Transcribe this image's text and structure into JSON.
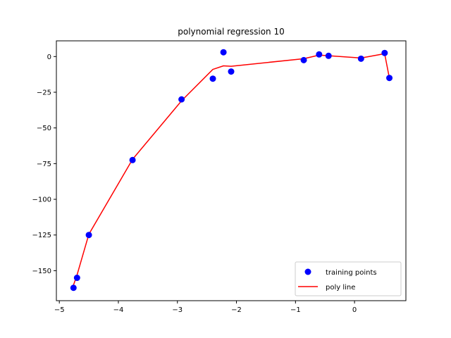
{
  "chart_data": {
    "type": "scatter",
    "title": "polynomial regression 10",
    "xlabel": "",
    "ylabel": "",
    "xlim": [
      -5.05,
      0.87
    ],
    "ylim": [
      -171,
      11
    ],
    "xticks": [
      -5,
      -4,
      -3,
      -2,
      -1,
      0
    ],
    "xtick_labels": [
      "−5",
      "−4",
      "−3",
      "−2",
      "−1",
      "0"
    ],
    "yticks": [
      0,
      -25,
      -50,
      -75,
      -100,
      -125,
      -150
    ],
    "ytick_labels": [
      "0",
      "−25",
      "−50",
      "−75",
      "−100",
      "−125",
      "−150"
    ],
    "grid": false,
    "legend_position": "lower-right",
    "series": [
      {
        "name": "training points",
        "kind": "scatter",
        "color": "#0000ff",
        "x": [
          -4.76,
          -4.7,
          -4.5,
          -3.76,
          -2.93,
          -2.4,
          -2.22,
          -2.09,
          -0.86,
          -0.6,
          -0.44,
          0.11,
          0.51,
          0.59
        ],
        "y": [
          -162,
          -155,
          -125,
          -72.5,
          -30,
          -15.5,
          3,
          -10.5,
          -2.5,
          1.5,
          0.5,
          -1.5,
          2.5,
          -15
        ]
      },
      {
        "name": "poly line",
        "kind": "line",
        "color": "#ff0000",
        "x": [
          -4.76,
          -4.7,
          -4.5,
          -3.76,
          -2.93,
          -2.4,
          -2.22,
          -2.09,
          -0.86,
          -0.6,
          -0.44,
          0.11,
          0.51,
          0.59
        ],
        "y": [
          -160,
          -153,
          -124.5,
          -72,
          -31,
          -9,
          -6.5,
          -6.8,
          -1.5,
          1,
          0.6,
          -1,
          2,
          -15
        ]
      }
    ]
  }
}
